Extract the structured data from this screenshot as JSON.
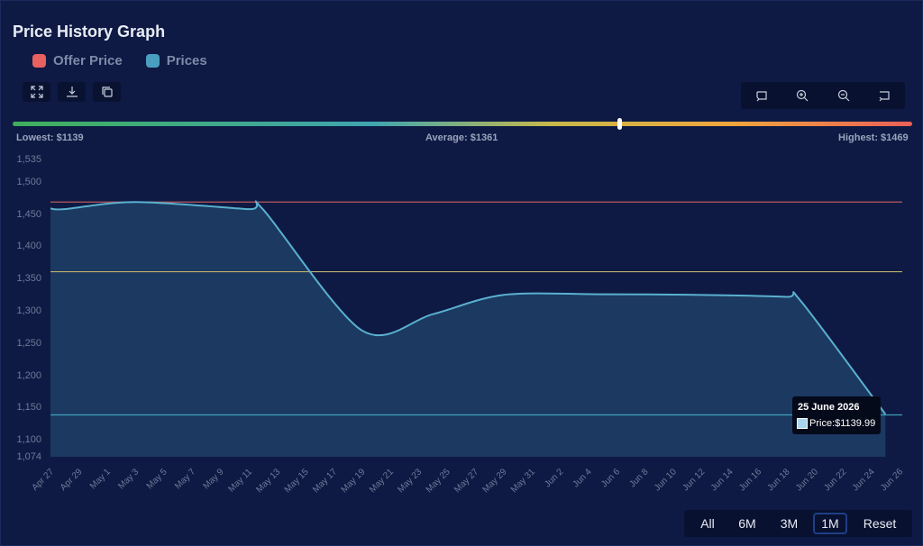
{
  "title": "Price History Graph",
  "legend": [
    {
      "label": "Offer Price",
      "color": "#e86060"
    },
    {
      "label": "Prices",
      "color": "#4a9ebf"
    }
  ],
  "toolbar_left": [
    {
      "name": "fullscreen-icon"
    },
    {
      "name": "download-icon"
    },
    {
      "name": "copy-icon"
    }
  ],
  "toolbar_right": [
    {
      "name": "pan-icon"
    },
    {
      "name": "zoom-in-icon"
    },
    {
      "name": "zoom-out-icon"
    },
    {
      "name": "reset-view-icon"
    }
  ],
  "stats": {
    "lowest": "Lowest: $1139",
    "average": "Average: $1361",
    "highest": "Highest: $1469",
    "marker_fraction": 0.674
  },
  "range_buttons": [
    "All",
    "6M",
    "3M",
    "1M",
    "Reset"
  ],
  "active_range": "1M",
  "tooltip": {
    "date": "25 June 2026",
    "text": "Price:$1139.99"
  },
  "colors": {
    "line": "#5ab0cf",
    "area": "#1d3f66",
    "highest_line": "#b85858",
    "average_line": "#bdb06a",
    "lowest_line": "#3fa0b8"
  },
  "chart_data": {
    "type": "area",
    "title": "Price History Graph",
    "y_ticks": [
      1074,
      1100,
      1150,
      1200,
      1250,
      1300,
      1350,
      1400,
      1450,
      1500,
      1535
    ],
    "y_tick_labels": [
      "1,074",
      "1,100",
      "1,150",
      "1,200",
      "1,250",
      "1,300",
      "1,350",
      "1,400",
      "1,450",
      "1,500",
      "1,535"
    ],
    "ylim": [
      1074,
      1535
    ],
    "x_tick_labels": [
      "Apr 27",
      "Apr 29",
      "May 1",
      "May 3",
      "May 5",
      "May 7",
      "May 9",
      "May 11",
      "May 13",
      "May 15",
      "May 17",
      "May 19",
      "May 21",
      "May 23",
      "May 25",
      "May 27",
      "May 29",
      "May 31",
      "Jun 2",
      "Jun 4",
      "Jun 6",
      "Jun 8",
      "Jun 10",
      "Jun 12",
      "Jun 14",
      "Jun 16",
      "Jun 18",
      "Jun 20",
      "Jun 22",
      "Jun 24",
      "Jun 26"
    ],
    "x_range": [
      "2026-04-27",
      "2026-06-26"
    ],
    "series": [
      {
        "name": "Prices",
        "points": [
          {
            "date": "2026-04-27",
            "price": 1459
          },
          {
            "date": "2026-04-28",
            "price": 1458
          },
          {
            "date": "2026-05-03",
            "price": 1469
          },
          {
            "date": "2026-05-11",
            "price": 1458
          },
          {
            "date": "2026-05-12",
            "price": 1458
          },
          {
            "date": "2026-05-19",
            "price": 1270
          },
          {
            "date": "2026-05-24",
            "price": 1295
          },
          {
            "date": "2026-05-29",
            "price": 1325
          },
          {
            "date": "2026-06-05",
            "price": 1326
          },
          {
            "date": "2026-06-12",
            "price": 1325
          },
          {
            "date": "2026-06-18",
            "price": 1322
          },
          {
            "date": "2026-06-19",
            "price": 1316
          },
          {
            "date": "2026-06-25",
            "price": 1139.99
          }
        ]
      }
    ],
    "reference_lines": [
      {
        "label": "Highest",
        "value": 1469
      },
      {
        "label": "Average",
        "value": 1361
      },
      {
        "label": "Lowest",
        "value": 1139
      }
    ],
    "grid": false
  }
}
